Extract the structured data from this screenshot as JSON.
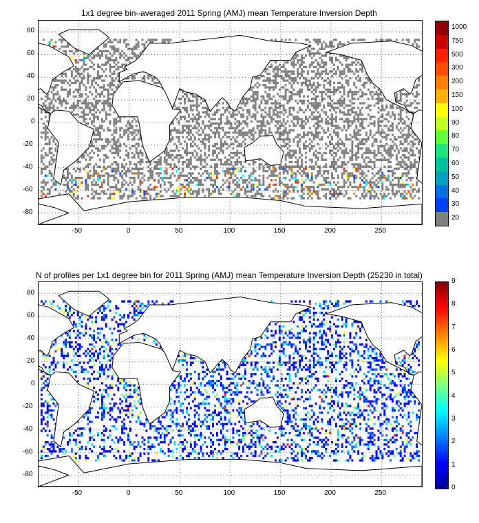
{
  "top_map": {
    "title": "1x1 degree bin–averaged 2011 Spring (AMJ) mean Temperature Inversion Depth",
    "x_ticks": [
      "-50",
      "0",
      "50",
      "100",
      "150",
      "200",
      "250"
    ],
    "y_ticks": [
      "80",
      "60",
      "40",
      "20",
      "0",
      "-20",
      "-40",
      "-60",
      "-80"
    ],
    "colorbar": {
      "labels": [
        "1000",
        "750",
        "500",
        "300",
        "200",
        "150",
        "100",
        "90",
        "80",
        "70",
        "60",
        "50",
        "40",
        "30",
        "20"
      ],
      "colors": [
        "#8b0000",
        "#cc0000",
        "#ff2000",
        "#ff5000",
        "#ff8000",
        "#ffb000",
        "#ffff00",
        "#c0ff20",
        "#60ff40",
        "#20e080",
        "#00c0a0",
        "#00a0c0",
        "#0070e0",
        "#0040ff",
        "#808080"
      ]
    }
  },
  "bottom_map": {
    "title": "N of profiles per 1x1 degree bin for 2011 Spring (AMJ) mean Temperature Inversion Depth  (25230 in total)",
    "x_ticks": [
      "-50",
      "0",
      "50",
      "100",
      "150",
      "200",
      "250"
    ],
    "y_ticks": [
      "80",
      "60",
      "40",
      "20",
      "0",
      "-20",
      "-40",
      "-60",
      "-80"
    ],
    "colorbar": {
      "labels": [
        "9",
        "8",
        "7",
        "6",
        "5",
        "4",
        "3",
        "2",
        "1",
        "0"
      ]
    }
  },
  "chart_data": [
    {
      "type": "heatmap",
      "title": "1x1 degree bin–averaged 2011 Spring (AMJ) mean Temperature Inversion Depth",
      "xlim": [
        -90,
        290
      ],
      "ylim": [
        -90,
        90
      ],
      "colorbar_levels": [
        20,
        30,
        40,
        50,
        60,
        70,
        80,
        90,
        100,
        150,
        200,
        300,
        500,
        750,
        1000
      ],
      "grid": true
    },
    {
      "type": "heatmap",
      "title": "N of profiles per 1x1 degree bin for 2011 Spring (AMJ) mean Temperature Inversion Depth  (25230 in total)",
      "xlim": [
        -90,
        290
      ],
      "ylim": [
        -90,
        90
      ],
      "colorbar_range": [
        0,
        9
      ],
      "grid": true
    }
  ]
}
